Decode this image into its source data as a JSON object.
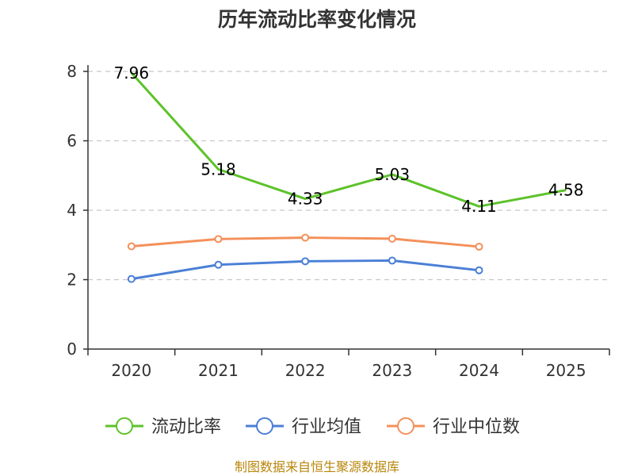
{
  "chart_data": {
    "type": "line",
    "title": "历年流动比率变化情况",
    "categories": [
      "2020",
      "2021",
      "2022",
      "2023",
      "2024",
      "2025"
    ],
    "y_ticks": [
      "0",
      "2",
      "4",
      "6",
      "8"
    ],
    "ylim": [
      0,
      8
    ],
    "grid": true,
    "legend_position": "bottom",
    "series": [
      {
        "name": "流动比率",
        "color": "#5dc22a",
        "values": [
          7.96,
          5.18,
          4.33,
          5.03,
          4.11,
          4.58
        ],
        "labels": [
          "7.96",
          "5.18",
          "4.33",
          "5.03",
          "4.11",
          "4.58"
        ]
      },
      {
        "name": "行业均值",
        "color": "#4a7fd6",
        "values": [
          2.02,
          2.43,
          2.53,
          2.55,
          2.27,
          null
        ]
      },
      {
        "name": "行业中位数",
        "color": "#f4905a",
        "values": [
          2.96,
          3.17,
          3.21,
          3.18,
          2.95,
          null
        ]
      }
    ],
    "source": "制图数据来自恒生聚源数据库"
  }
}
